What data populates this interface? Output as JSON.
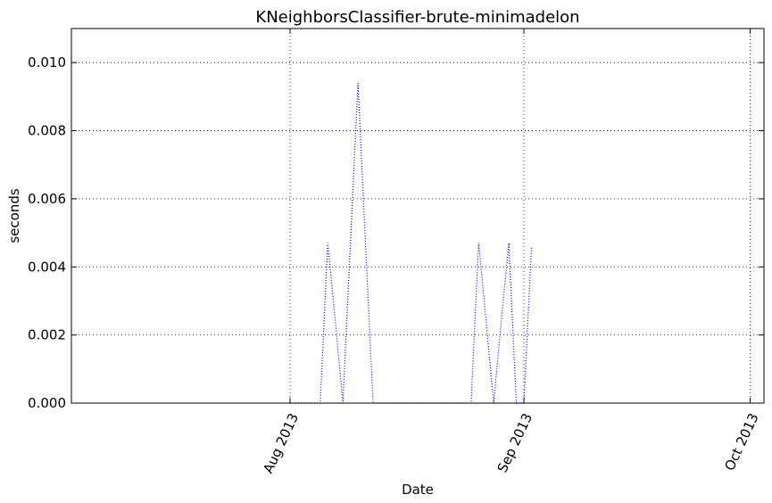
{
  "chart_data": {
    "type": "line",
    "title": "KNeighborsClassifier-brute-minimadelon",
    "xlabel": "Date",
    "ylabel": "seconds",
    "x_is_date": true,
    "xlim": [
      "2013-07-10",
      "2013-10-01"
    ],
    "ylim": [
      0,
      0.011
    ],
    "yticks": [
      0.0,
      0.002,
      0.004,
      0.006,
      0.008,
      0.01
    ],
    "ytick_labels": [
      "0.000",
      "0.002",
      "0.004",
      "0.006",
      "0.008",
      "0.010"
    ],
    "xticks": [
      "2013-08-01",
      "2013-09-01",
      "2013-10-01"
    ],
    "xtick_labels": [
      "Aug 2013",
      "Sep 2013",
      "Oct 2013"
    ],
    "grid": true,
    "series": [
      {
        "color": "#0000ff",
        "linestyle": "dotted",
        "x": [
          "2013-08-01",
          "2013-08-02",
          "2013-08-03",
          "2013-08-04",
          "2013-08-05",
          "2013-08-06",
          "2013-08-07",
          "2013-08-08",
          "2013-08-09",
          "2013-08-10",
          "2013-08-11",
          "2013-08-12",
          "2013-08-13",
          "2013-08-14",
          "2013-08-15",
          "2013-08-16",
          "2013-08-17",
          "2013-08-18",
          "2013-08-19",
          "2013-08-20",
          "2013-08-21",
          "2013-08-22",
          "2013-08-23",
          "2013-08-24",
          "2013-08-25",
          "2013-08-26",
          "2013-08-27",
          "2013-08-28",
          "2013-08-29",
          "2013-08-30",
          "2013-08-31",
          "2013-09-01",
          "2013-09-02"
        ],
        "values": [
          0.0,
          0.0,
          0.0,
          0.0,
          0.0,
          0.0047,
          0.0024,
          0.0,
          0.0047,
          0.0094,
          0.0047,
          0.0,
          0.0,
          0.0,
          0.0,
          0.0,
          0.0,
          0.0,
          0.0,
          0.0,
          0.0,
          0.0,
          0.0,
          0.0,
          0.0,
          0.0047,
          0.0024,
          0.0,
          0.0024,
          0.0047,
          0.0,
          0.0,
          0.0046
        ]
      }
    ]
  }
}
